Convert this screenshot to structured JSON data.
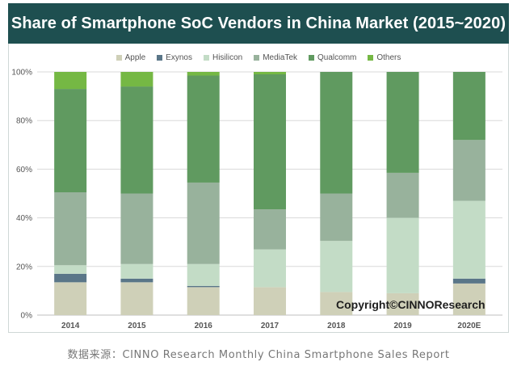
{
  "chart_data": {
    "type": "bar",
    "stacked": true,
    "title": "Share of Smartphone SoC Vendors in China Market (2015~2020)",
    "xlabel": "",
    "ylabel": "",
    "ylim": [
      0,
      100
    ],
    "yticks": [
      0,
      20,
      40,
      60,
      80,
      100
    ],
    "ytick_labels": [
      "0%",
      "20%",
      "40%",
      "60%",
      "80%",
      "100%"
    ],
    "grid": true,
    "legend_position": "top-center",
    "categories": [
      "2014",
      "2015",
      "2016",
      "2017",
      "2018",
      "2019",
      "2020E"
    ],
    "series": [
      {
        "name": "Apple",
        "color": "#cfd0b8",
        "values": [
          13.5,
          13.5,
          11.5,
          11.5,
          9.5,
          9.0,
          13.0
        ]
      },
      {
        "name": "Exynos",
        "color": "#5a7688",
        "values": [
          3.5,
          1.5,
          0.5,
          0.0,
          0.0,
          0.0,
          2.0
        ]
      },
      {
        "name": "Hisilicon",
        "color": "#c3dcc6",
        "values": [
          3.5,
          6.0,
          9.0,
          15.5,
          21.0,
          31.0,
          32.0
        ]
      },
      {
        "name": "MediaTek",
        "color": "#98b29c",
        "values": [
          30.0,
          29.0,
          33.5,
          16.5,
          19.5,
          18.5,
          25.0
        ]
      },
      {
        "name": "Qualcomm",
        "color": "#609a60",
        "values": [
          42.5,
          44.0,
          44.0,
          55.5,
          50.0,
          41.5,
          28.0
        ]
      },
      {
        "name": "Others",
        "color": "#75b844",
        "values": [
          7.0,
          6.0,
          1.5,
          1.0,
          0.0,
          0.0,
          0.0
        ]
      }
    ],
    "annotations": [
      "Copyright©CINNOResearch"
    ]
  },
  "header": {
    "title": "Share of Smartphone SoC Vendors in China Market (2015~2020)"
  },
  "watermark": "Copyright©CINNOResearch",
  "footer": {
    "source": "数据来源：CINNO Research Monthly China Smartphone Sales Report"
  },
  "colors": {
    "title_bar": "#1e4f50",
    "gridline": "#d9d9d9"
  }
}
